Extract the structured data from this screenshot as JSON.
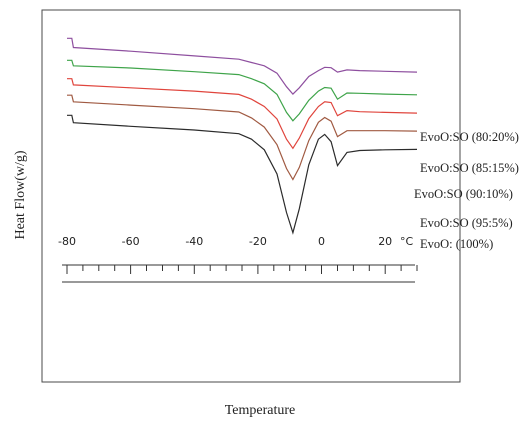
{
  "chart_data": {
    "type": "line",
    "title": "",
    "xlabel": "Temperature",
    "ylabel": "Heat Flow(w/g)",
    "x_unit_label": "°C",
    "xlim": [
      -80,
      30
    ],
    "x_ticks": [
      "-80",
      "-60",
      "-40",
      "-20",
      "0",
      "20"
    ],
    "series": [
      {
        "name": "EvoO:SO (80:20%)",
        "color": "#8e4f9f",
        "x": [
          -80,
          -78.5,
          -78,
          -60,
          -40,
          -26,
          -22,
          -18,
          -14,
          -11,
          -9,
          -7,
          -4,
          -1,
          1,
          3,
          5,
          8,
          12,
          20,
          30
        ],
        "y": [
          15,
          15,
          12.5,
          11.5,
          10.2,
          9.3,
          8.4,
          7.5,
          5.5,
          1.8,
          -0.2,
          1.5,
          4.6,
          6.2,
          7.1,
          7.0,
          5.8,
          6.4,
          6.2,
          6.0,
          5.8
        ]
      },
      {
        "name": "EvoO:SO (85:15%)",
        "color": "#3fa44a",
        "x": [
          -80,
          -78.5,
          -78,
          -60,
          -40,
          -26,
          -22,
          -18,
          -14,
          -11,
          -9,
          -7,
          -4,
          -1,
          1,
          3,
          5,
          8,
          12,
          20,
          30
        ],
        "y": [
          9,
          9,
          7.5,
          6.9,
          5.9,
          5.1,
          4.0,
          2.6,
          -0.3,
          -5.2,
          -7.5,
          -5.6,
          -1.9,
          0.6,
          1.6,
          1.4,
          -1.6,
          0.1,
          0.0,
          -0.2,
          -0.4
        ]
      },
      {
        "name": "EvoO:SO (90:10%)",
        "color": "#e0453d",
        "x": [
          -80,
          -78.5,
          -78,
          -60,
          -40,
          -26,
          -22,
          -18,
          -14,
          -11,
          -9,
          -7,
          -4,
          -1,
          1,
          3,
          5,
          8,
          12,
          20,
          30
        ],
        "y": [
          4,
          4,
          2.3,
          1.5,
          0.6,
          -0.3,
          -1.6,
          -3.6,
          -7.0,
          -12.5,
          -15.0,
          -12.2,
          -6.9,
          -3.6,
          -2.3,
          -2.5,
          -6.1,
          -4.7,
          -5.0,
          -5.2,
          -5.4
        ]
      },
      {
        "name": "EvoO:SO (95:5%)",
        "color": "#a05a42",
        "x": [
          -80,
          -78.5,
          -78,
          -60,
          -40,
          -26,
          -22,
          -18,
          -14,
          -11,
          -9,
          -7,
          -4,
          -1,
          1,
          3,
          5,
          8,
          12,
          20,
          30
        ],
        "y": [
          -0.5,
          -0.5,
          -2.3,
          -3.2,
          -4.2,
          -5.1,
          -6.7,
          -9.2,
          -14.0,
          -20.5,
          -23.5,
          -20.2,
          -12.9,
          -7.9,
          -6.6,
          -7.6,
          -11.8,
          -10.2,
          -10.2,
          -10.2,
          -10.3
        ]
      },
      {
        "name": "EvoO: (100%)",
        "color": "#2b2b2b",
        "x": [
          -80,
          -78.5,
          -78,
          -60,
          -40,
          -26,
          -22,
          -18,
          -14,
          -11,
          -9,
          -7,
          -4,
          -1,
          1,
          3,
          5,
          8,
          12,
          20,
          30
        ],
        "y": [
          -6,
          -6,
          -8.0,
          -9.0,
          -10.0,
          -11.0,
          -12.5,
          -15.4,
          -22.0,
          -32.5,
          -38.0,
          -31.5,
          -19.5,
          -12.5,
          -11.2,
          -13.2,
          -19.7,
          -16.1,
          -15.6,
          -15.4,
          -15.3
        ]
      }
    ],
    "legend_placement": "right of curves",
    "grid": false
  }
}
